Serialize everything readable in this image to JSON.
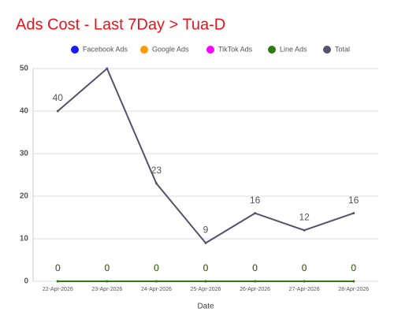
{
  "chart_data": {
    "type": "line",
    "title": "Ads Cost - Last 7Day > Tua-D",
    "x_label": "Date",
    "categories": [
      "22-Apr-2026",
      "23-Apr-2026",
      "24-Apr-2026",
      "25-Apr-2026",
      "26-Apr-2026",
      "27-Apr-2026",
      "28-Apr-2026"
    ],
    "series": [
      {
        "name": "Facebook Ads",
        "color": "#1a1aff",
        "values": [
          0,
          0,
          0,
          0,
          0,
          0,
          0
        ]
      },
      {
        "name": "Google Ads",
        "color": "#ff9900",
        "values": [
          0,
          0,
          0,
          0,
          0,
          0,
          0
        ]
      },
      {
        "name": "TikTok Ads",
        "color": "#ff00ff",
        "values": [
          0,
          0,
          0,
          0,
          0,
          0,
          0
        ]
      },
      {
        "name": "Line Ads",
        "color": "#2e7d13",
        "values": [
          0,
          0,
          0,
          0,
          0,
          0,
          0
        ]
      },
      {
        "name": "Total",
        "color": "#56516e",
        "values": [
          40,
          50,
          23,
          9,
          16,
          12,
          16
        ],
        "value_labels": [
          "40",
          null,
          "23",
          "9",
          "16",
          "12",
          "16"
        ]
      }
    ],
    "ylim": [
      0,
      50
    ],
    "yticks": [
      0,
      10,
      20,
      30,
      40,
      50
    ],
    "grid": true
  }
}
